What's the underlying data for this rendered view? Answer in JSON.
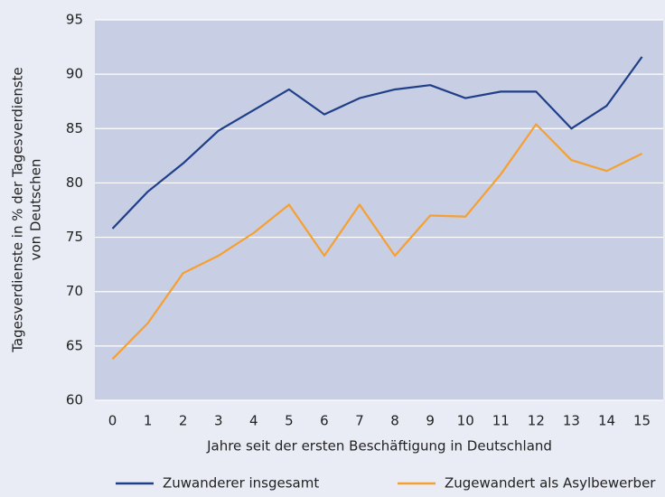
{
  "chart_data": {
    "type": "line",
    "x_label": "Jahre seit der ersten Beschäftigung in Deutschland",
    "y_label": [
      "Tagesverdienste in % der Tagesverdienste",
      "von Deutschen"
    ],
    "x": [
      0,
      1,
      2,
      3,
      4,
      5,
      6,
      7,
      8,
      9,
      10,
      11,
      12,
      13,
      14,
      15
    ],
    "xlim": [
      -0.5,
      15.6
    ],
    "xticks": [
      0,
      1,
      2,
      3,
      4,
      5,
      6,
      7,
      8,
      9,
      10,
      11,
      12,
      13,
      14,
      15
    ],
    "ylim": [
      60,
      95
    ],
    "yticks": [
      60,
      65,
      70,
      75,
      80,
      85,
      90,
      95
    ],
    "grid": true,
    "legend": "bottom",
    "series": [
      {
        "name": "Zuwanderer insgesamt",
        "color": "#1f3f88",
        "values": [
          75.8,
          79.2,
          81.8,
          84.8,
          86.7,
          88.6,
          86.3,
          87.8,
          88.6,
          89.0,
          87.8,
          88.4,
          88.4,
          85.0,
          87.1,
          91.6
        ]
      },
      {
        "name": "Zugewandert als Asylbewerber",
        "color": "#f5a030",
        "values": [
          63.8,
          67.1,
          71.7,
          73.3,
          75.4,
          78.0,
          73.3,
          78.0,
          73.3,
          77.0,
          76.9,
          80.8,
          85.4,
          82.1,
          81.1,
          82.7
        ]
      }
    ]
  }
}
